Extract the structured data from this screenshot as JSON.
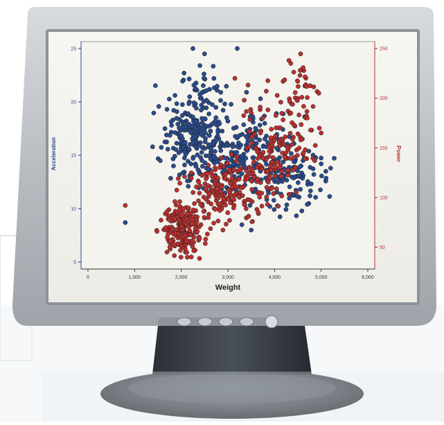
{
  "chart_data": {
    "type": "scatter",
    "title": "",
    "xlabel": "Weight",
    "ylabel_left": "Acceleration",
    "ylabel_right": "Power",
    "x_ticks": [
      "0",
      "1,000",
      "2,000",
      "3,000",
      "4,000",
      "5,000",
      "6,000"
    ],
    "y_left_ticks": [
      "5",
      "10",
      "15",
      "20",
      "25"
    ],
    "y_right_ticks": [
      "50",
      "100",
      "150",
      "200",
      "250"
    ],
    "xlim": [
      0,
      6000
    ],
    "ylim_left": [
      5,
      25
    ],
    "ylim_right": [
      35,
      250
    ],
    "grid": false,
    "series": [
      {
        "axis": "left",
        "color": "#2b4c8c",
        "clusters": [
          {
            "x": 2250,
            "y": 16.8,
            "sx": 300,
            "sy": 2.0,
            "n": 220,
            "seed": 11
          },
          {
            "x": 3300,
            "y": 14.8,
            "sx": 480,
            "sy": 1.9,
            "n": 180,
            "seed": 12
          },
          {
            "x": 4250,
            "y": 13.2,
            "sx": 450,
            "sy": 1.6,
            "n": 110,
            "seed": 13
          },
          {
            "x": 2450,
            "y": 20.8,
            "sx": 250,
            "sy": 1.4,
            "n": 35,
            "seed": 14
          }
        ],
        "points": [
          [
            2250,
            25
          ],
          [
            3200,
            25
          ],
          [
            2400,
            23.4
          ],
          [
            2500,
            24.5
          ],
          [
            800,
            8.7
          ],
          [
            3500,
            8
          ],
          [
            5100,
            13.5
          ],
          [
            4700,
            10.4
          ],
          [
            4400,
            11.3
          ],
          [
            3300,
            8.5
          ],
          [
            3000,
            18.2
          ],
          [
            3400,
            20.9
          ],
          [
            3700,
            20.3
          ],
          [
            4100,
            16.2
          ],
          [
            1550,
            14.5
          ],
          [
            1650,
            17.5
          ],
          [
            3900,
            10.2
          ],
          [
            2700,
            22.2
          ],
          [
            2150,
            12.1
          ],
          [
            5000,
            14.2
          ]
        ]
      },
      {
        "axis": "right",
        "color": "#b8312f",
        "clusters": [
          {
            "x": 2050,
            "y": 68,
            "sx": 230,
            "sy": 12,
            "n": 220,
            "seed": 21
          },
          {
            "x": 2950,
            "y": 105,
            "sx": 380,
            "sy": 17,
            "n": 170,
            "seed": 22
          },
          {
            "x": 4050,
            "y": 152,
            "sx": 380,
            "sy": 26,
            "n": 150,
            "seed": 23
          },
          {
            "x": 4550,
            "y": 212,
            "sx": 230,
            "sy": 14,
            "n": 35,
            "seed": 24
          }
        ],
        "points": [
          [
            800,
            92
          ],
          [
            3150,
            220
          ],
          [
            3350,
            198
          ],
          [
            4350,
            235
          ],
          [
            4550,
            228
          ],
          [
            4950,
            205
          ],
          [
            4700,
            180
          ],
          [
            3900,
            120
          ],
          [
            3700,
            165
          ],
          [
            5000,
            165
          ],
          [
            4350,
            185
          ],
          [
            1700,
            60
          ],
          [
            1850,
            52
          ],
          [
            4450,
            130
          ]
        ]
      }
    ]
  }
}
